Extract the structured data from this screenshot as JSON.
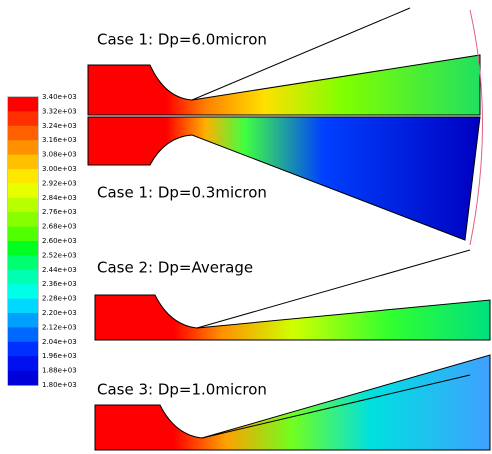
{
  "colorbar": {
    "labels": [
      "3.40e+03",
      "3.32e+03",
      "3.24e+03",
      "3.16e+03",
      "3.08e+03",
      "3.00e+03",
      "2.92e+03",
      "2.84e+03",
      "2.76e+03",
      "2.68e+03",
      "2.60e+03",
      "2.52e+03",
      "2.44e+03",
      "2.36e+03",
      "2.28e+03",
      "2.20e+03",
      "2.12e+03",
      "2.04e+03",
      "1.96e+03",
      "1.88e+03",
      "1.80e+03"
    ],
    "colors": [
      "#ff0000",
      "#ff3000",
      "#ff6000",
      "#ff9000",
      "#ffc000",
      "#ffe800",
      "#e8ff00",
      "#b8ff00",
      "#88ff00",
      "#50ff00",
      "#00ff20",
      "#00ff70",
      "#00ffb0",
      "#00ffe8",
      "#00d8ff",
      "#00a0ff",
      "#0068ff",
      "#0030ff",
      "#0010f0",
      "#0000d8"
    ]
  },
  "panels": [
    {
      "label": "Case 1: Dp=6.0micron"
    },
    {
      "label": "Case 1: Dp=0.3micron"
    },
    {
      "label": "Case 2: Dp=Average"
    },
    {
      "label": "Case 3: Dp=1.0micron"
    }
  ]
}
